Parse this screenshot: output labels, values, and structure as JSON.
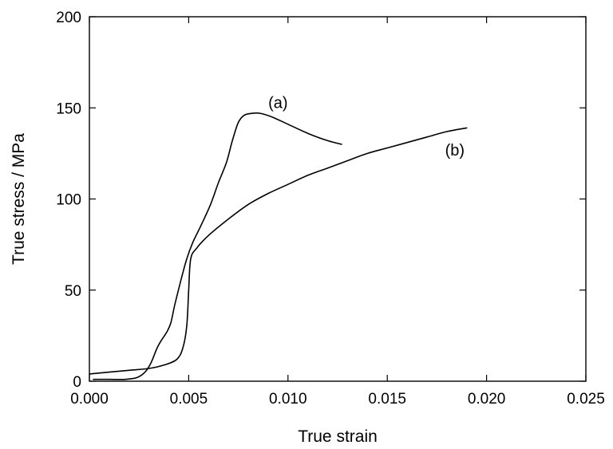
{
  "chart_data": {
    "type": "line",
    "title": "",
    "xlabel": "True strain",
    "ylabel": "True stress / MPa",
    "xlim": [
      0.0,
      0.025
    ],
    "ylim": [
      0,
      200
    ],
    "x_ticks": [
      0.0,
      0.005,
      0.01,
      0.015,
      0.02,
      0.025
    ],
    "x_tick_labels": [
      "0.000",
      "0.005",
      "0.010",
      "0.015",
      "0.020",
      "0.025"
    ],
    "y_ticks": [
      0,
      50,
      100,
      150,
      200
    ],
    "y_tick_labels": [
      "0",
      "50",
      "100",
      "150",
      "200"
    ],
    "grid": false,
    "series": [
      {
        "name": "(a)",
        "color": "#000000",
        "x": [
          0.0002,
          0.001,
          0.0018,
          0.0024,
          0.0028,
          0.0031,
          0.0034,
          0.0036,
          0.0039,
          0.0041,
          0.0043,
          0.0046,
          0.0049,
          0.0052,
          0.0056,
          0.0061,
          0.0065,
          0.0069,
          0.0072,
          0.0075,
          0.0078,
          0.0082,
          0.0086,
          0.0092,
          0.01,
          0.011,
          0.012,
          0.0127
        ],
        "y": [
          1,
          1,
          1,
          2,
          5,
          10,
          18,
          22,
          27,
          32,
          42,
          55,
          67,
          76,
          85,
          97,
          109,
          120,
          132,
          142,
          146,
          147,
          147,
          145,
          141,
          136,
          132,
          130
        ]
      },
      {
        "name": "(b)",
        "color": "#000000",
        "x": [
          0.0,
          0.001,
          0.002,
          0.003,
          0.0038,
          0.0044,
          0.0047,
          0.0049,
          0.005,
          0.0051,
          0.0054,
          0.006,
          0.007,
          0.008,
          0.009,
          0.01,
          0.011,
          0.012,
          0.013,
          0.014,
          0.015,
          0.016,
          0.017,
          0.018,
          0.019
        ],
        "y": [
          4,
          5,
          6,
          7,
          9,
          12,
          18,
          30,
          50,
          67,
          73,
          80,
          89,
          97,
          103,
          108,
          113,
          117,
          121,
          125,
          128,
          131,
          134,
          137,
          139
        ]
      }
    ],
    "annotations": [
      {
        "text": "(a)",
        "x": 0.0095,
        "y": 153
      },
      {
        "text": "(b)",
        "x": 0.0184,
        "y": 127
      }
    ]
  }
}
